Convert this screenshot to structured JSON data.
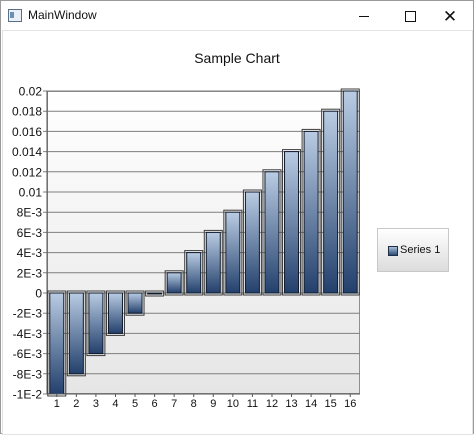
{
  "window": {
    "title": "MainWindow",
    "minimize_icon": "minimize-icon",
    "maximize_icon": "maximize-icon",
    "close_icon": "close-icon"
  },
  "chart_data": {
    "type": "bar",
    "title": "Sample Chart",
    "categories": [
      "1",
      "2",
      "3",
      "4",
      "5",
      "6",
      "7",
      "8",
      "9",
      "10",
      "11",
      "12",
      "13",
      "14",
      "15",
      "16"
    ],
    "series": [
      {
        "name": "Series 1",
        "values": [
          -0.01,
          -0.008,
          -0.006,
          -0.004,
          -0.002,
          0,
          0.002,
          0.004,
          0.006,
          0.008,
          0.01,
          0.012,
          0.014,
          0.016,
          0.018,
          0.02
        ]
      }
    ],
    "ylim": [
      -0.01,
      0.02
    ],
    "yticks": [
      {
        "value": 0.02,
        "label": "0.02"
      },
      {
        "value": 0.018,
        "label": "0.018"
      },
      {
        "value": 0.016,
        "label": "0.016"
      },
      {
        "value": 0.014,
        "label": "0.014"
      },
      {
        "value": 0.012,
        "label": "0.012"
      },
      {
        "value": 0.01,
        "label": "0.01"
      },
      {
        "value": 0.008,
        "label": "8E-3"
      },
      {
        "value": 0.006,
        "label": "6E-3"
      },
      {
        "value": 0.004,
        "label": "4E-3"
      },
      {
        "value": 0.002,
        "label": "2E-3"
      },
      {
        "value": 0,
        "label": "0"
      },
      {
        "value": -0.002,
        "label": "-2E-3"
      },
      {
        "value": -0.004,
        "label": "-4E-3"
      },
      {
        "value": -0.006,
        "label": "-6E-3"
      },
      {
        "value": -0.008,
        "label": "-8E-3"
      },
      {
        "value": -0.01,
        "label": "-1E-2"
      }
    ],
    "grid": true,
    "legend": "right",
    "colors": {
      "bar_top": "#b9cce3",
      "bar_bottom": "#23406c",
      "bar_border": "#0f1a2b",
      "grid": "#7f7f7f"
    }
  }
}
